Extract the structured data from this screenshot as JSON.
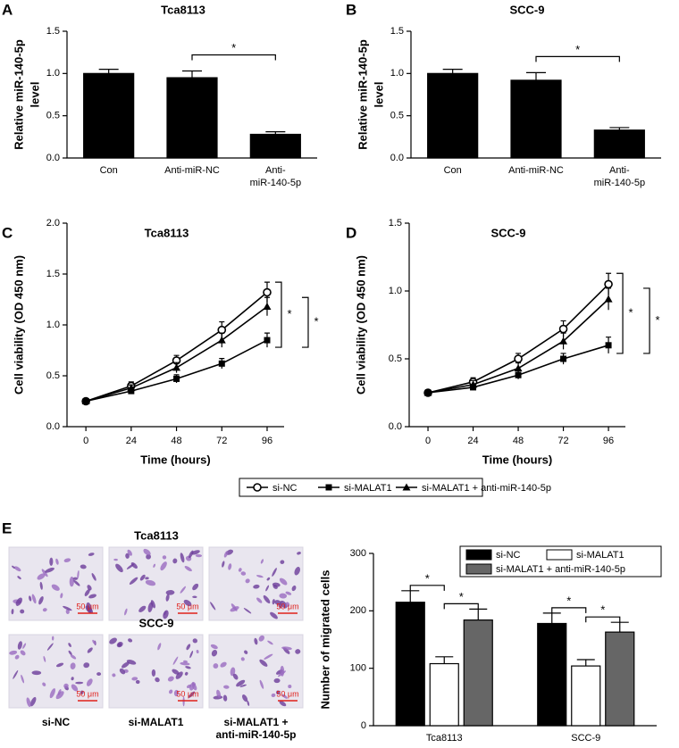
{
  "chart_data": [
    {
      "type": "bar",
      "panel_label": "A",
      "title": "Tca8113",
      "ylabel": [
        "Relative miR-140-5p",
        "level"
      ],
      "categories": [
        [
          "Con"
        ],
        [
          "Anti-miR-NC"
        ],
        [
          "Anti-",
          "miR-140-5p"
        ]
      ],
      "values": [
        1.0,
        0.95,
        0.28
      ],
      "errors": [
        0.05,
        0.08,
        0.03
      ],
      "color": "#000000",
      "ylim": [
        0,
        1.5
      ],
      "yticks": [
        {
          "value": 0,
          "label": "0.0"
        },
        {
          "value": 0.5,
          "label": "0.5"
        },
        {
          "value": 1,
          "label": "1.0"
        },
        {
          "value": 1.5,
          "label": "1.5"
        }
      ],
      "significance": "*"
    },
    {
      "type": "bar",
      "panel_label": "B",
      "title": "SCC-9",
      "ylabel": [
        "Relative miR-140-5p",
        "level"
      ],
      "categories": [
        [
          "Con"
        ],
        [
          "Anti-miR-NC"
        ],
        [
          "Anti-",
          "miR-140-5p"
        ]
      ],
      "values": [
        1.0,
        0.92,
        0.33
      ],
      "errors": [
        0.05,
        0.09,
        0.03
      ],
      "color": "#000000",
      "ylim": [
        0,
        1.5
      ],
      "yticks": [
        {
          "value": 0,
          "label": "0.0"
        },
        {
          "value": 0.5,
          "label": "0.5"
        },
        {
          "value": 1,
          "label": "1.0"
        },
        {
          "value": 1.5,
          "label": "1.5"
        }
      ],
      "significance": "*"
    },
    {
      "type": "line",
      "panel_label": "C",
      "title": "Tca8113",
      "ylabel": "Cell viability (OD 450 nm)",
      "xlabel": "Time (hours)",
      "x": [
        0,
        24,
        48,
        72,
        96
      ],
      "xlim": [
        -10,
        105
      ],
      "xticks": [
        0,
        24,
        48,
        72,
        96
      ],
      "ylim": [
        0,
        2
      ],
      "yticks": [
        {
          "value": 0,
          "label": "0.0"
        },
        {
          "value": 0.5,
          "label": "0.5"
        },
        {
          "value": 1,
          "label": "1.0"
        },
        {
          "value": 1.5,
          "label": "1.5"
        },
        {
          "value": 2,
          "label": "2.0"
        }
      ],
      "series": [
        {
          "name": "si-NC",
          "color": "#000000",
          "marker": "circle",
          "values": [
            0.25,
            0.4,
            0.65,
            0.95,
            1.32
          ],
          "errors": [
            0.02,
            0.04,
            0.05,
            0.08,
            0.1
          ]
        },
        {
          "name": "si-MALAT1",
          "color": "#000000",
          "marker": "square",
          "values": [
            0.25,
            0.35,
            0.47,
            0.62,
            0.85
          ],
          "errors": [
            0.02,
            0.03,
            0.04,
            0.05,
            0.07
          ]
        },
        {
          "name": "si-MALAT1 + anti-miR-140-5p",
          "color": "#000000",
          "marker": "triangle",
          "values": [
            0.25,
            0.38,
            0.58,
            0.85,
            1.18
          ],
          "errors": [
            0.02,
            0.03,
            0.05,
            0.07,
            0.09
          ]
        }
      ],
      "significance": "*"
    },
    {
      "type": "line",
      "panel_label": "D",
      "title": "SCC-9",
      "ylabel": "Cell viability (OD 450 nm)",
      "xlabel": "Time (hours)",
      "x": [
        0,
        24,
        48,
        72,
        96
      ],
      "xlim": [
        -10,
        105
      ],
      "xticks": [
        0,
        24,
        48,
        72,
        96
      ],
      "ylim": [
        0,
        1.5
      ],
      "yticks": [
        {
          "value": 0,
          "label": "0.0"
        },
        {
          "value": 0.5,
          "label": "0.5"
        },
        {
          "value": 1,
          "label": "1.0"
        },
        {
          "value": 1.5,
          "label": "1.5"
        }
      ],
      "series": [
        {
          "color": "#000000",
          "marker": "circle",
          "values": [
            0.25,
            0.33,
            0.5,
            0.72,
            1.05
          ],
          "errors": [
            0.02,
            0.03,
            0.04,
            0.06,
            0.08
          ]
        },
        {
          "color": "#000000",
          "marker": "square",
          "values": [
            0.25,
            0.29,
            0.38,
            0.5,
            0.6
          ],
          "errors": [
            0.02,
            0.02,
            0.03,
            0.04,
            0.06
          ]
        },
        {
          "color": "#000000",
          "marker": "triangle",
          "values": [
            0.25,
            0.31,
            0.43,
            0.63,
            0.94
          ],
          "errors": [
            0.02,
            0.03,
            0.04,
            0.06,
            0.08
          ]
        }
      ],
      "significance": "*"
    },
    {
      "type": "bar",
      "ylabel": [
        "Number of migrated cells"
      ],
      "categories": [
        [
          "Tca8113"
        ],
        [
          "SCC-9"
        ]
      ],
      "ylim": [
        0,
        300
      ],
      "yticks": [
        0,
        100,
        200,
        300
      ],
      "legend": "top-right",
      "series": [
        {
          "name": "si-NC",
          "color": "#000000",
          "values": [
            215,
            178
          ],
          "errors": [
            20,
            18
          ]
        },
        {
          "name": "si-MALAT1",
          "color": "#ffffff",
          "values": [
            108,
            104
          ],
          "errors": [
            12,
            11
          ]
        },
        {
          "name": "si-MALAT1 + anti-miR-140-5p",
          "color": "#666666",
          "values": [
            184,
            163
          ],
          "errors": [
            19,
            17
          ]
        }
      ],
      "significance": "*"
    }
  ],
  "image_panel": {
    "panel_label": "E",
    "rows": [
      "Tca8113",
      "SCC-9"
    ],
    "columns": [
      [
        "si-NC"
      ],
      [
        "si-MALAT1"
      ],
      [
        "si-MALAT1 +",
        "anti-miR-140-5p"
      ]
    ],
    "scale_bar": "50 μm"
  }
}
